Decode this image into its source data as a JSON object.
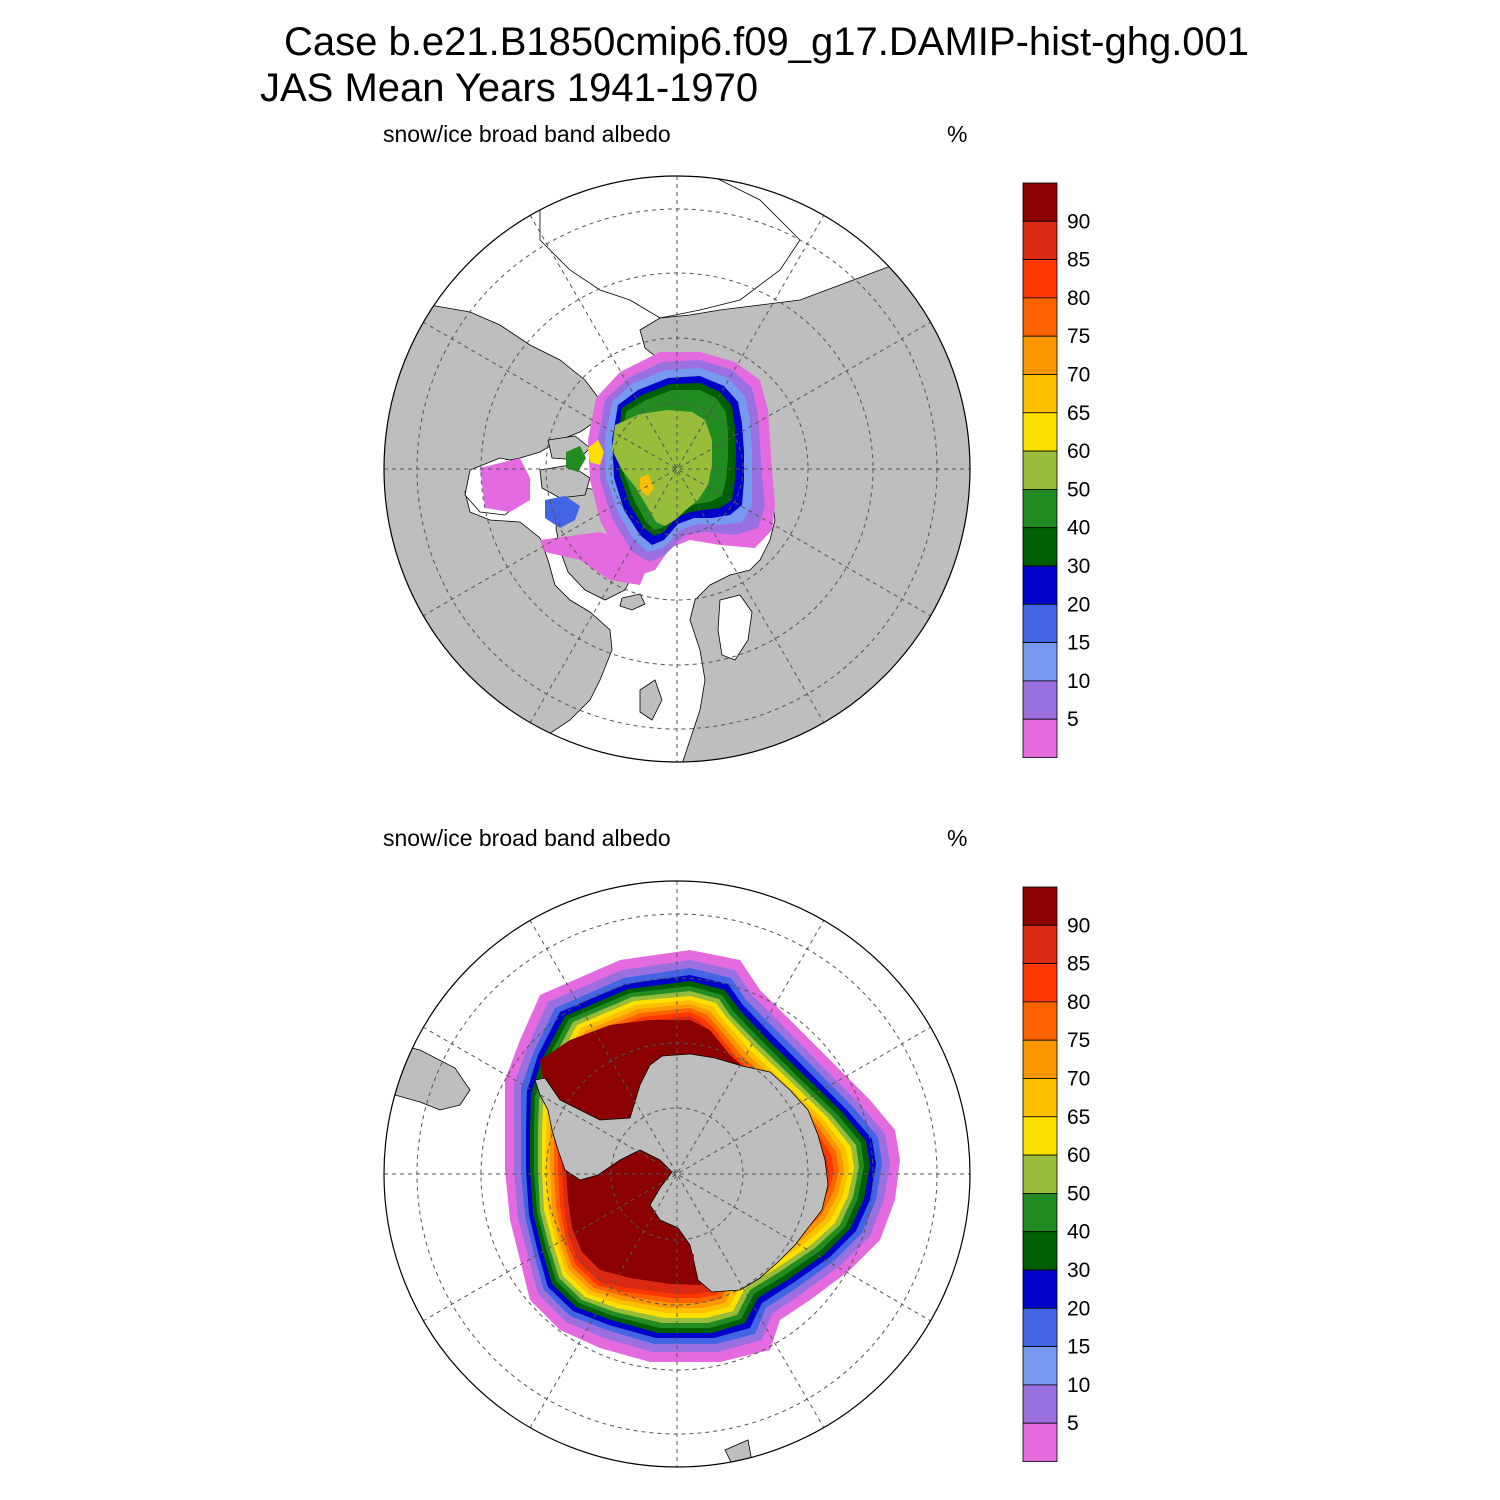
{
  "title": {
    "line1": "Case b.e21.B1850cmip6.f09_g17.DAMIP-hist-ghg.001",
    "line2": "JAS Mean   Years 1941-1970"
  },
  "colors": {
    "land": "#bebebe",
    "ocean": "#ffffff",
    "grid": "#555555"
  },
  "colorbar": {
    "levels": [
      "5",
      "10",
      "15",
      "20",
      "30",
      "40",
      "50",
      "60",
      "65",
      "70",
      "75",
      "80",
      "85",
      "90"
    ],
    "colors": [
      "#e46bdf",
      "#9a6fe0",
      "#779af0",
      "#4165e3",
      "#0000c8",
      "#005f00",
      "#228b22",
      "#97bd3a",
      "#fce100",
      "#fdbf00",
      "#fd9700",
      "#fd6400",
      "#fc3800",
      "#db2a14",
      "#8b0000"
    ]
  },
  "panels": [
    {
      "id": "north",
      "label": "snow/ice broad band albedo",
      "units": "%",
      "hemisphere": "Arctic (north polar stereographic)"
    },
    {
      "id": "south",
      "label": "snow/ice broad band albedo",
      "units": "%",
      "hemisphere": "Antarctic (south polar stereographic)"
    }
  ]
}
